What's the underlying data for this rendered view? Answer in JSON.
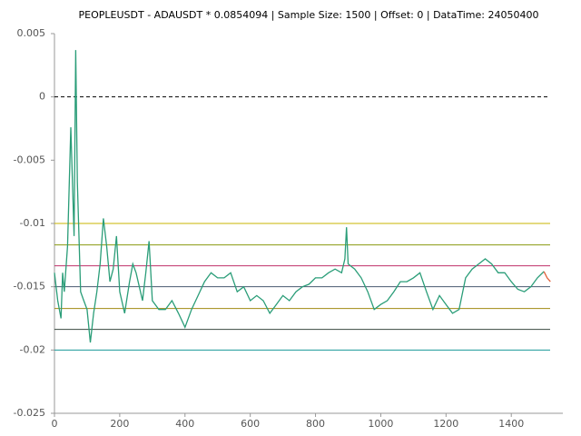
{
  "chart_data": {
    "type": "line",
    "title": "PEOPLEUSDT - ADAUSDT * 0.0854094 | Sample Size: 1500 | Offset: 0 | DataTime: 24050400",
    "xlim": [
      0,
      1558
    ],
    "ylim": [
      -0.025,
      0.005
    ],
    "xticks": [
      0,
      200,
      400,
      600,
      800,
      1000,
      1200,
      1400
    ],
    "yticks": [
      0.005,
      0,
      -0.005,
      -0.01,
      -0.015,
      -0.02,
      -0.025
    ],
    "hlines": [
      {
        "value": 0,
        "color": "#000000",
        "dashed": true
      },
      {
        "value": -0.01,
        "color": "#c8b400",
        "dashed": false
      },
      {
        "value": -0.0117,
        "color": "#8a9a10",
        "dashed": false
      },
      {
        "value": -0.01335,
        "color": "#c0306a",
        "dashed": false
      },
      {
        "value": -0.015,
        "color": "#4a5a70",
        "dashed": false
      },
      {
        "value": -0.01672,
        "color": "#a08a10",
        "dashed": false
      },
      {
        "value": -0.01837,
        "color": "#3a4a40",
        "dashed": false
      },
      {
        "value": -0.02,
        "color": "#1a9a9a",
        "dashed": false
      }
    ],
    "series": [
      {
        "color": "#2a9d78",
        "x": [
          0,
          10,
          20,
          25,
          30,
          40,
          50,
          55,
          60,
          65,
          70,
          80,
          90,
          100,
          110,
          120,
          130,
          140,
          150,
          160,
          170,
          180,
          190,
          200,
          215,
          230,
          240,
          250,
          270,
          280,
          290,
          300,
          320,
          340,
          360,
          380,
          400,
          420,
          440,
          460,
          480,
          500,
          520,
          540,
          560,
          580,
          600,
          620,
          640,
          660,
          680,
          700,
          720,
          740,
          760,
          780,
          800,
          820,
          840,
          860,
          880,
          890,
          895,
          900,
          920,
          940,
          960,
          980,
          1000,
          1020,
          1040,
          1060,
          1080,
          1100,
          1120,
          1140,
          1160,
          1180,
          1200,
          1220,
          1240,
          1260,
          1280,
          1300,
          1320,
          1340,
          1360,
          1380,
          1400,
          1420,
          1440,
          1460,
          1480,
          1500
        ],
        "values": [
          -0.0139,
          -0.0161,
          -0.0175,
          -0.0139,
          -0.0154,
          -0.0118,
          -0.0024,
          -0.0067,
          -0.011,
          0.0037,
          -0.0067,
          -0.0154,
          -0.0161,
          -0.0168,
          -0.0194,
          -0.0171,
          -0.0154,
          -0.0132,
          -0.0096,
          -0.0118,
          -0.0146,
          -0.0136,
          -0.011,
          -0.0154,
          -0.0171,
          -0.0146,
          -0.0132,
          -0.0139,
          -0.0161,
          -0.0139,
          -0.0114,
          -0.0161,
          -0.0168,
          -0.0168,
          -0.0161,
          -0.0171,
          -0.0182,
          -0.0168,
          -0.0157,
          -0.0146,
          -0.0139,
          -0.0143,
          -0.0143,
          -0.0139,
          -0.0154,
          -0.015,
          -0.0161,
          -0.0157,
          -0.0161,
          -0.0171,
          -0.0164,
          -0.0157,
          -0.0161,
          -0.0154,
          -0.015,
          -0.0148,
          -0.0143,
          -0.0143,
          -0.0139,
          -0.0136,
          -0.0139,
          -0.0128,
          -0.0103,
          -0.0132,
          -0.0136,
          -0.0143,
          -0.0154,
          -0.0168,
          -0.0164,
          -0.0161,
          -0.0154,
          -0.0146,
          -0.0146,
          -0.0143,
          -0.0139,
          -0.0154,
          -0.0168,
          -0.0157,
          -0.0164,
          -0.0171,
          -0.0168,
          -0.0143,
          -0.0136,
          -0.0132,
          -0.0128,
          -0.0132,
          -0.0139,
          -0.0139,
          -0.0146,
          -0.0152,
          -0.0154,
          -0.015,
          -0.0143,
          -0.0138
        ]
      },
      {
        "color": "#e0603a",
        "x": [
          1500,
          1510,
          1520
        ],
        "values": [
          -0.0138,
          -0.0143,
          -0.0146
        ]
      }
    ]
  }
}
